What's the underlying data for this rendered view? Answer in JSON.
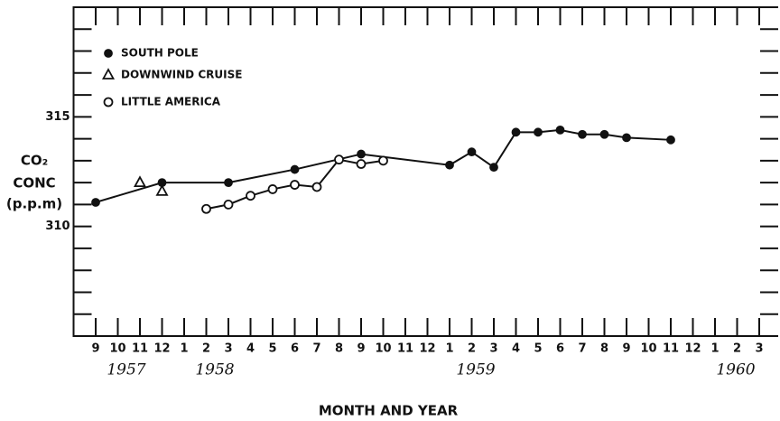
{
  "chart_data": {
    "type": "line",
    "xlabel": "MONTH AND YEAR",
    "ylabel": [
      "CO₂",
      "CONC",
      "(p.p.m)"
    ],
    "year_labels": [
      "1957",
      "1958",
      "1959",
      "1960"
    ],
    "xlim": [
      "1957-08",
      "1960-04"
    ],
    "xticks": [
      {
        "value": "1957-09",
        "label": "9"
      },
      {
        "value": "1957-10",
        "label": "10"
      },
      {
        "value": "1957-11",
        "label": "11"
      },
      {
        "value": "1957-12",
        "label": "12"
      },
      {
        "value": "1958-01",
        "label": "1"
      },
      {
        "value": "1958-02",
        "label": "2"
      },
      {
        "value": "1958-03",
        "label": "3"
      },
      {
        "value": "1958-04",
        "label": "4"
      },
      {
        "value": "1958-05",
        "label": "5"
      },
      {
        "value": "1958-06",
        "label": "6"
      },
      {
        "value": "1958-07",
        "label": "7"
      },
      {
        "value": "1958-08",
        "label": "8"
      },
      {
        "value": "1958-09",
        "label": "9"
      },
      {
        "value": "1958-10",
        "label": "10"
      },
      {
        "value": "1958-11",
        "label": "11"
      },
      {
        "value": "1958-12",
        "label": "12"
      },
      {
        "value": "1959-01",
        "label": "1"
      },
      {
        "value": "1959-02",
        "label": "2"
      },
      {
        "value": "1959-03",
        "label": "3"
      },
      {
        "value": "1959-04",
        "label": "4"
      },
      {
        "value": "1959-05",
        "label": "5"
      },
      {
        "value": "1959-06",
        "label": "6"
      },
      {
        "value": "1959-07",
        "label": "7"
      },
      {
        "value": "1959-08",
        "label": "8"
      },
      {
        "value": "1959-09",
        "label": "9"
      },
      {
        "value": "1959-10",
        "label": "10"
      },
      {
        "value": "1959-11",
        "label": "11"
      },
      {
        "value": "1959-12",
        "label": "12"
      },
      {
        "value": "1960-01",
        "label": "1"
      },
      {
        "value": "1960-02",
        "label": "2"
      },
      {
        "value": "1960-03",
        "label": "3"
      }
    ],
    "ylim": [
      305,
      320
    ],
    "yticks": [
      310,
      315
    ],
    "yminor_ticks": [
      306,
      307,
      308,
      309,
      311,
      312,
      313,
      314,
      316,
      317,
      318,
      319
    ],
    "legend": "upper left",
    "series": [
      {
        "name": "SOUTH POLE",
        "marker": "filled-circle",
        "connected": true,
        "color": "#111111",
        "x": [
          "1957-09",
          "1957-12",
          "1958-03",
          "1958-06",
          "1958-09",
          "1959-01",
          "1959-02",
          "1959-03",
          "1959-04",
          "1959-05",
          "1959-06",
          "1959-07",
          "1959-08",
          "1959-09",
          "1959-11"
        ],
        "values": [
          311.1,
          312.0,
          312.0,
          312.6,
          313.3,
          312.8,
          313.4,
          312.7,
          314.3,
          314.3,
          314.4,
          314.2,
          314.2,
          314.05,
          313.95
        ]
      },
      {
        "name": "DOWNWIND CRUISE",
        "marker": "open-triangle",
        "connected": false,
        "color": "#111111",
        "x": [
          "1957-11",
          "1957-12"
        ],
        "values": [
          312.0,
          311.6
        ]
      },
      {
        "name": "LITTLE AMERICA",
        "marker": "open-circle",
        "connected": true,
        "color": "#111111",
        "x": [
          "1958-02",
          "1958-03",
          "1958-04",
          "1958-05",
          "1958-06",
          "1958-07",
          "1958-08",
          "1958-09",
          "1958-10"
        ],
        "values": [
          310.8,
          311.0,
          311.4,
          311.7,
          311.9,
          311.8,
          313.05,
          312.85,
          313.0
        ]
      }
    ]
  }
}
